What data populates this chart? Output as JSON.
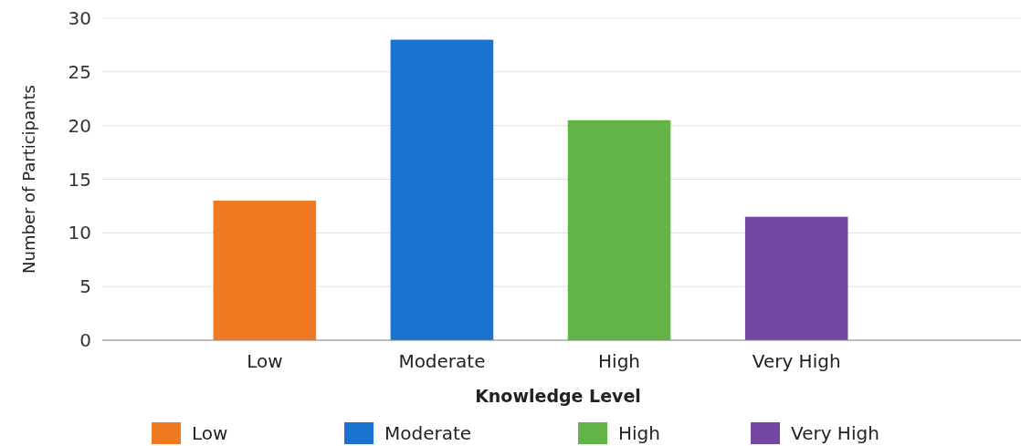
{
  "chart_data": {
    "type": "bar",
    "xlabel": "Knowledge Level",
    "ylabel": "Number of Participants",
    "categories": [
      "Low",
      "Moderate",
      "High",
      "Very High"
    ],
    "series": [
      {
        "name": "Low",
        "color": "#f07a22",
        "values": [
          13,
          null,
          null,
          null
        ]
      },
      {
        "name": "Moderate",
        "color": "#1a73d0",
        "values": [
          null,
          28,
          null,
          null
        ]
      },
      {
        "name": "High",
        "color": "#62b446",
        "values": [
          null,
          null,
          20.5,
          null
        ]
      },
      {
        "name": "Very High",
        "color": "#7446a4",
        "values": [
          null,
          null,
          null,
          11.5
        ]
      }
    ],
    "ylim": [
      0,
      30
    ],
    "yticks": [
      0,
      5,
      10,
      15,
      20,
      25,
      30
    ],
    "grid": "y",
    "legend": "bottom"
  }
}
